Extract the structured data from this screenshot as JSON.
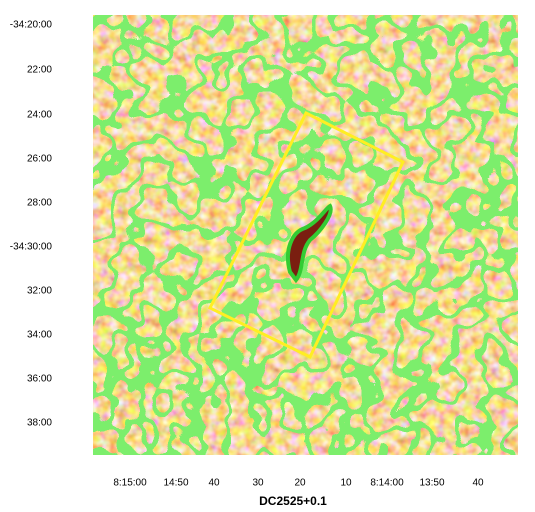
{
  "image": {
    "y_ticks": [
      "-34:20:00",
      "22:00",
      "24:00",
      "26:00",
      "28:00",
      "-34:30:00",
      "32:00",
      "34:00",
      "36:00",
      "38:00"
    ],
    "x_ticks": [
      "8:15:00",
      "14:50",
      "40",
      "30",
      "20",
      "10",
      "8:14:00",
      "13:50",
      "40"
    ],
    "x_label": "DC2525+0.1"
  }
}
